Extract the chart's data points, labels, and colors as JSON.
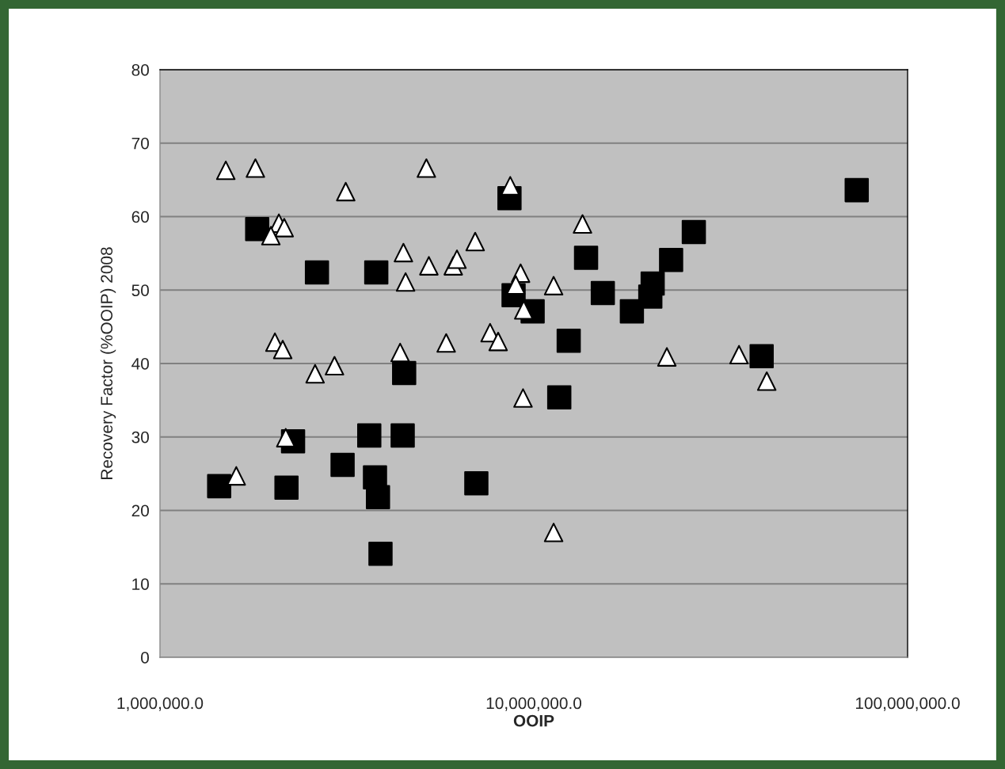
{
  "chart_data": {
    "type": "scatter",
    "xlabel": "OOIP",
    "ylabel": "Recovery Factor (%OOIP) 2008",
    "log": "x",
    "grid": "y",
    "legend": false,
    "xlim": [
      1000000,
      100000000
    ],
    "xticks": [
      {
        "value": 1000000,
        "label": "1,000,000.0"
      },
      {
        "value": 10000000,
        "label": "10,000,000.0"
      },
      {
        "value": 100000000,
        "label": "100,000,000.0"
      }
    ],
    "ylim": [
      0,
      80
    ],
    "yticks": [
      0,
      10,
      20,
      30,
      40,
      50,
      60,
      70,
      80
    ],
    "series": [
      {
        "color": "#000000",
        "marker": "square",
        "x": [
          1440000,
          1820000,
          2180000,
          2270000,
          2630000,
          3080000,
          3630000,
          3790000,
          3760000,
          3830000,
          3890000,
          4460000,
          4500000,
          7020000,
          8610000,
          8830000,
          9930000,
          12400000,
          11700000,
          13800000,
          15300000,
          18300000,
          20500000,
          20800000,
          23300000,
          26800000,
          73100000,
          40700000
        ],
        "values": [
          23.3,
          58.3,
          23.1,
          29.4,
          52.4,
          26.2,
          30.2,
          52.4,
          24.5,
          21.8,
          14.1,
          30.2,
          38.7,
          23.7,
          62.5,
          49.3,
          47.1,
          43.1,
          35.4,
          54.4,
          49.6,
          47.1,
          49.1,
          50.9,
          54.1,
          57.9,
          63.6,
          41.0
        ]
      },
      {
        "color": "#ffffff",
        "marker": "triangle",
        "x": [
          1500000,
          1800000,
          2080000,
          2150000,
          1980000,
          2030000,
          2130000,
          2170000,
          1600000,
          2600000,
          2930000,
          3140000,
          4480000,
          4540000,
          4390000,
          5160000,
          5240000,
          6090000,
          6230000,
          6970000,
          5830000,
          7640000,
          8030000,
          8650000,
          9220000,
          8950000,
          9400000,
          9360000,
          11300000,
          11300000,
          13500000,
          22700000,
          35400000,
          42000000
        ],
        "values": [
          66.3,
          66.6,
          59.1,
          58.5,
          57.4,
          42.9,
          41.9,
          29.9,
          24.7,
          38.6,
          39.7,
          63.4,
          55.1,
          51.1,
          41.5,
          66.6,
          53.3,
          53.3,
          54.2,
          56.6,
          42.8,
          44.2,
          43.0,
          64.2,
          52.3,
          50.7,
          47.3,
          35.3,
          50.6,
          17.0,
          59.0,
          40.9,
          41.2,
          37.6
        ]
      }
    ]
  }
}
